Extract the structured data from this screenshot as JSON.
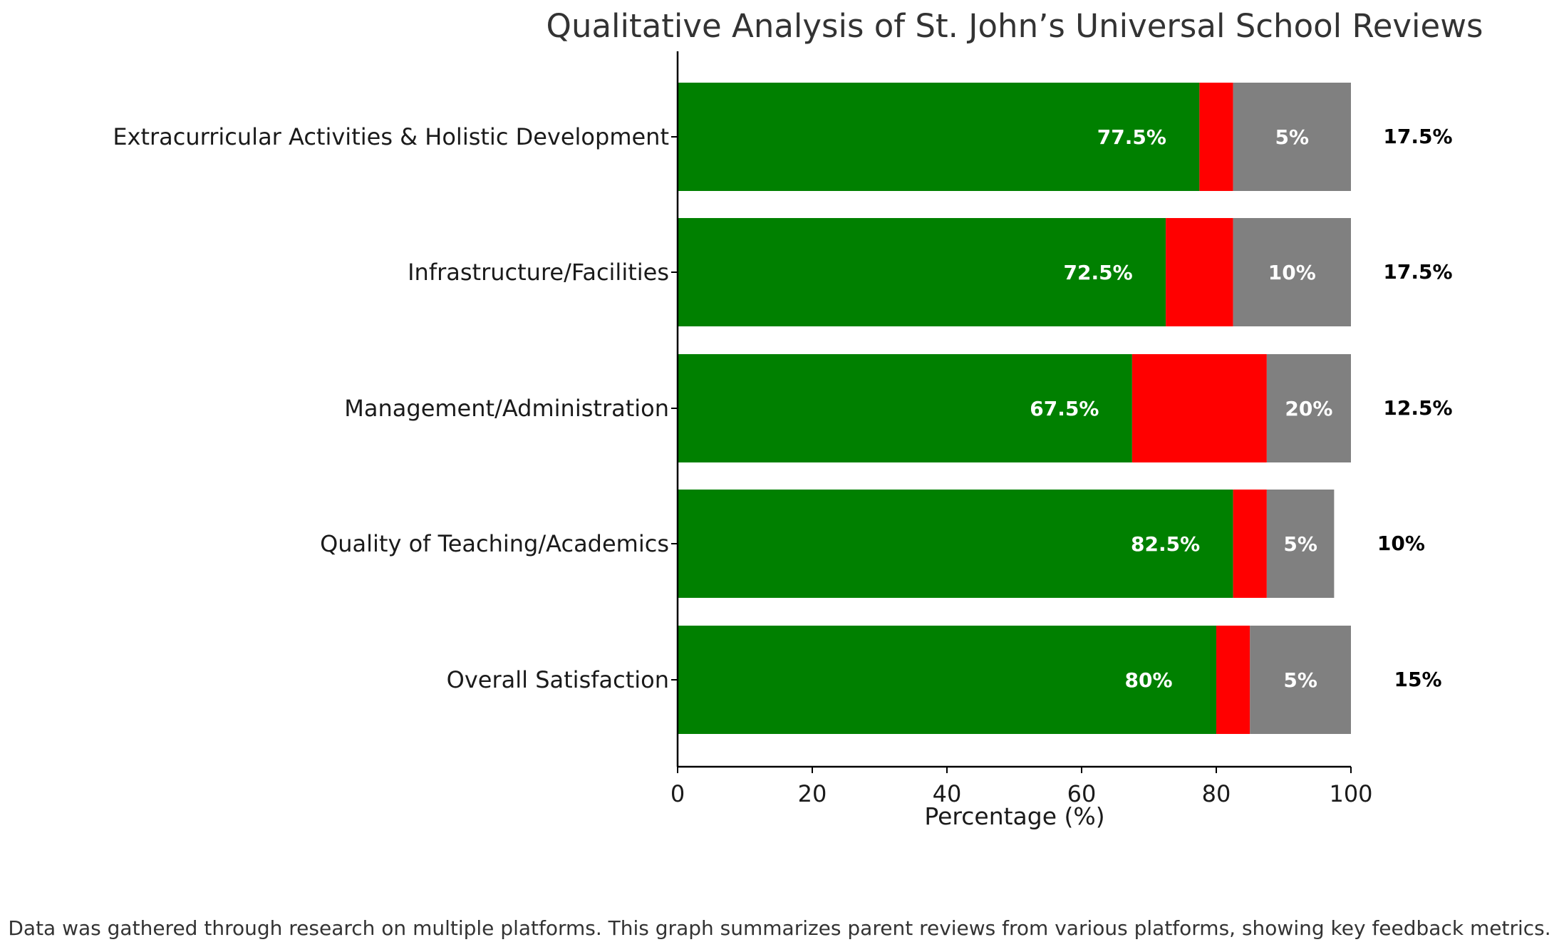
{
  "chart_data": {
    "type": "bar",
    "orientation": "horizontal",
    "stacked": true,
    "title": "Qualitative Analysis of St. John’s Universal School Reviews",
    "xlabel": "Percentage (%)",
    "ylabel": "",
    "xlim": [
      0,
      100
    ],
    "xticks": [
      "0",
      "20",
      "40",
      "60",
      "80",
      "100"
    ],
    "xtick_values": [
      0,
      20,
      40,
      60,
      80,
      100
    ],
    "grid": false,
    "legend": "none",
    "categories": [
      "Extracurricular Activities & Holistic Development",
      "Infrastructure/Facilities",
      "Management/Administration",
      "Quality of Teaching/Academics",
      "Overall Satisfaction"
    ],
    "series": [
      {
        "color": "#008000",
        "values": [
          77.5,
          72.5,
          67.5,
          82.5,
          80
        ]
      },
      {
        "color": "#ff0000",
        "values": [
          5,
          10,
          20,
          5,
          5
        ]
      },
      {
        "color": "#808080",
        "values": [
          17.5,
          17.5,
          12.5,
          10,
          15
        ]
      }
    ],
    "labels": [
      {
        "inner": "77.5%",
        "middle": "5%",
        "outer": "17.5%"
      },
      {
        "inner": "72.5%",
        "middle": "10%",
        "outer": "17.5%"
      },
      {
        "inner": "67.5%",
        "middle": "20%",
        "outer": "12.5%"
      },
      {
        "inner": "82.5%",
        "middle": "5%",
        "outer": "10%"
      },
      {
        "inner": "80%",
        "middle": "5%",
        "outer": "15%"
      }
    ]
  },
  "footnote": "Data was gathered through research on multiple platforms. This graph summarizes parent reviews from various platforms, showing key feedback metrics."
}
